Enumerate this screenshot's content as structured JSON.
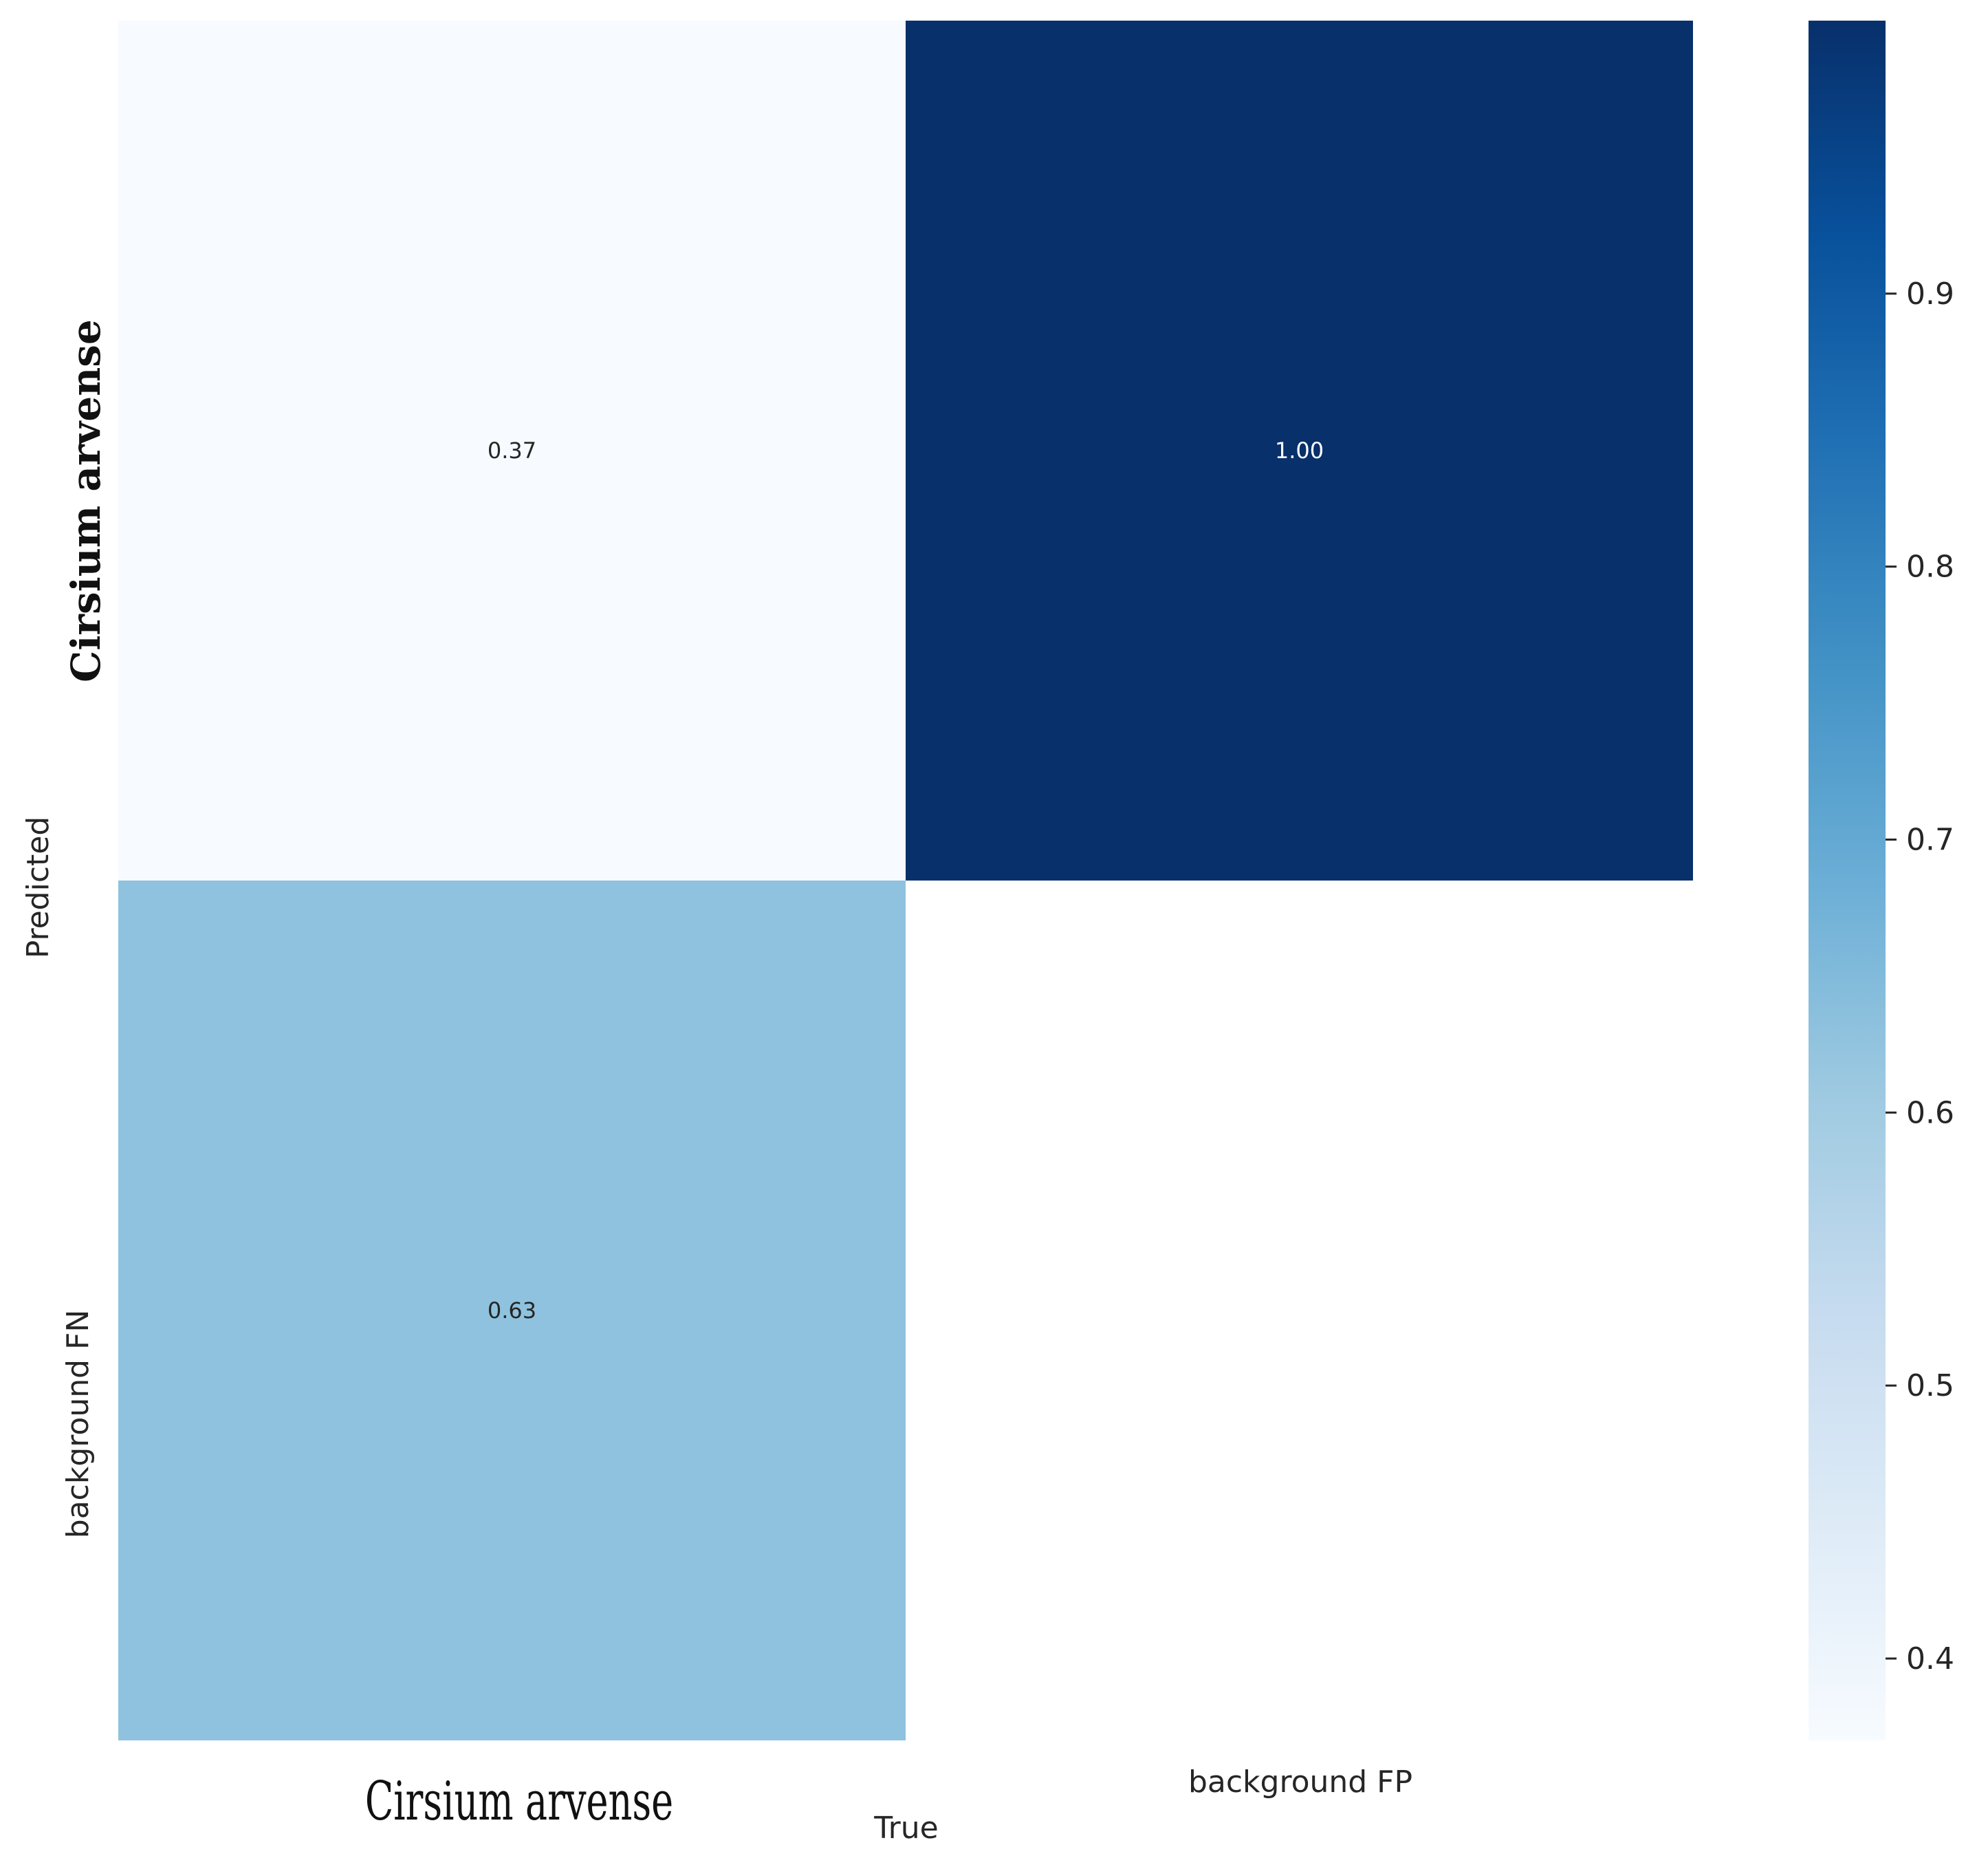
{
  "chart_data": {
    "type": "heatmap",
    "title": "",
    "xlabel": "True",
    "ylabel": "Predicted",
    "x_categories": [
      "Cirsium arvense",
      "background FP"
    ],
    "y_categories": [
      "Cirsium arvense",
      "background FN"
    ],
    "matrix": [
      [
        0.37,
        1.0
      ],
      [
        0.63,
        null
      ]
    ],
    "cell_labels": [
      [
        "0.37",
        "1.00"
      ],
      [
        "0.63",
        ""
      ]
    ],
    "colorbar": {
      "range": [
        0.37,
        1.0
      ],
      "ticks": [
        0.4,
        0.5,
        0.6,
        0.7,
        0.8,
        0.9
      ],
      "tick_labels": [
        "0.4",
        "0.5",
        "0.6",
        "0.7",
        "0.8",
        "0.9"
      ],
      "colormap": "Blues"
    }
  },
  "colors": {
    "low": "#f7fbff",
    "high": "#08306b",
    "text_dark": "#262626",
    "text_light": "#ffffff"
  }
}
